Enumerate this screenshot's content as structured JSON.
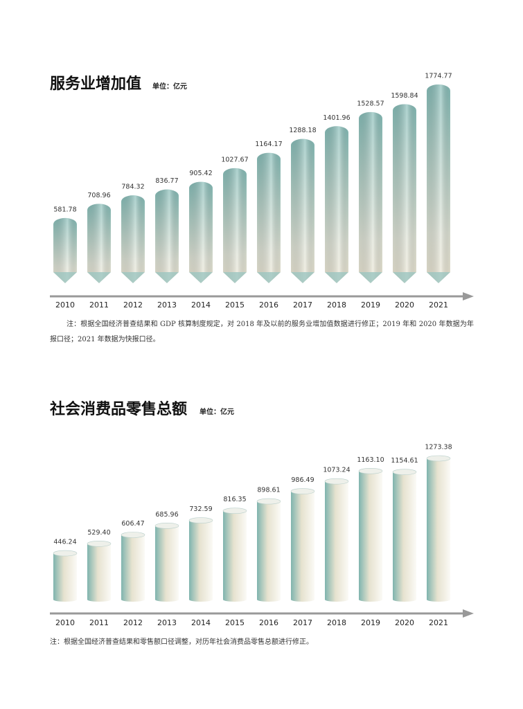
{
  "chart_data": [
    {
      "type": "pencil-bar",
      "title": "服务业增加值",
      "subtitle": "单位：亿元",
      "categories": [
        "2010",
        "2011",
        "2012",
        "2013",
        "2014",
        "2015",
        "2016",
        "2017",
        "2018",
        "2019",
        "2020",
        "2021"
      ],
      "values": [
        581.78,
        708.96,
        784.32,
        836.77,
        905.42,
        1027.67,
        1164.17,
        1288.18,
        1401.96,
        1528.57,
        1598.84,
        1774.77
      ],
      "note": "注：根据全国经济普查结果和 GDP 核算制度规定，对 2018 年及以前的服务业增加值数据进行修正；2019 年和 2020 年数据为年报口径；2021 年数据为快报口径。"
    },
    {
      "type": "cylinder-bar",
      "title": "社会消费品零售总额",
      "subtitle": "单位：亿元",
      "categories": [
        "2010",
        "2011",
        "2012",
        "2013",
        "2014",
        "2015",
        "2016",
        "2017",
        "2018",
        "2019",
        "2020",
        "2021"
      ],
      "values": [
        446.24,
        529.4,
        606.47,
        685.96,
        732.59,
        816.35,
        898.61,
        986.49,
        1073.24,
        1163.1,
        1154.61,
        1273.38
      ],
      "value_labels": [
        "446.24",
        "529.40",
        "606.47",
        "685.96",
        "732.59",
        "816.35",
        "898.61",
        "986.49",
        "1073.24",
        "1163.10",
        "1154.61",
        "1273.38"
      ],
      "note": "注：根据全国经济普查结果和零售额口径调整，对历年社会消费品零售总额进行修正。"
    }
  ]
}
